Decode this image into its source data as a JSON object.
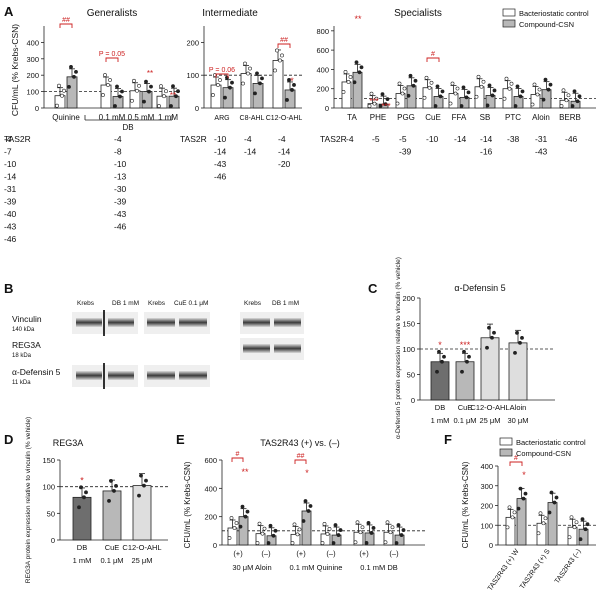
{
  "legend": {
    "open": "Bacteriostatic control",
    "gray": "Compound-CSN"
  },
  "panels": {
    "A": "A",
    "B": "B",
    "C": "C",
    "D": "D",
    "E": "E",
    "F": "F"
  },
  "colors": {
    "red": "#cc1f1f",
    "gray": "#b8b8b8",
    "dark": "#6e6e6e",
    "light": "#dedede"
  },
  "panelA": {
    "titles": {
      "g": "Generalists",
      "i": "Intermediate",
      "s": "Specialists"
    },
    "ylabel": "CFU/mL (% Krebs-CSN)",
    "tas2r_label": "TAS2R",
    "db_label": "DB",
    "g": {
      "ymax": 500,
      "ticks": [
        "0",
        "100",
        "200",
        "300",
        "400"
      ],
      "groups": [
        {
          "label": "Quinine",
          "ctrl": 75,
          "comp": 190
        },
        {
          "label": "0.1 mM",
          "ctrl": 140,
          "comp": 70
        },
        {
          "label": "0.5 mM",
          "ctrl": 105,
          "comp": 100
        },
        {
          "label": "1 mM",
          "ctrl": 72,
          "comp": 72
        }
      ],
      "tas2r": [
        [
          "-4",
          "-7",
          "-10",
          "-14",
          "-31",
          "-39",
          "-40",
          "-43",
          "-46"
        ],
        [
          "-4",
          "-8",
          "-10",
          "-13",
          "-30",
          "-39",
          "-43",
          "-46"
        ]
      ],
      "annot": {
        "quinine": "##",
        "p": "P = 0.05",
        "s1": "**",
        "s2": "**"
      }
    },
    "i": {
      "ymax": 250,
      "ticks": [
        "0",
        "100",
        "200"
      ],
      "groups": [
        {
          "label": "ARG",
          "ctrl": 70,
          "comp": 62
        },
        {
          "label": "C8-AHL",
          "ctrl": 105,
          "comp": 75
        },
        {
          "label": "C12-O-AHL",
          "ctrl": 145,
          "comp": 55
        }
      ],
      "tas2r": [
        [
          "-10",
          "-14",
          "-43",
          "-46"
        ],
        [
          "-4",
          "-14"
        ],
        [
          "-4",
          "-14",
          "-20"
        ]
      ],
      "annot": {
        "p": "P = 0.06",
        "hh": "##",
        "s": "*"
      }
    },
    "s": {
      "ymax": 850,
      "ticks": [
        "0",
        "200",
        "400",
        "600",
        "800"
      ],
      "groups": [
        {
          "label": "TA",
          "ctrl": 270,
          "comp": 370
        },
        {
          "label": "PHE",
          "ctrl": 45,
          "comp": 40
        },
        {
          "label": "PGG",
          "ctrl": 150,
          "comp": 230
        },
        {
          "label": "CuE",
          "ctrl": 210,
          "comp": 120
        },
        {
          "label": "FFA",
          "ctrl": 150,
          "comp": 110
        },
        {
          "label": "SB",
          "ctrl": 220,
          "comp": 130
        },
        {
          "label": "PTC",
          "ctrl": 200,
          "comp": 120
        },
        {
          "label": "Aloin",
          "ctrl": 140,
          "comp": 190
        },
        {
          "label": "BERB",
          "ctrl": 80,
          "comp": 70
        }
      ],
      "tas2r": [
        [
          "-4"
        ],
        [
          "-5"
        ],
        [
          "-5",
          "-39"
        ],
        [
          "-10"
        ],
        [
          "-14"
        ],
        [
          "-14",
          "-16"
        ],
        [
          "-38"
        ],
        [
          "-31",
          "-43"
        ],
        [
          "-46"
        ]
      ],
      "annot": {
        "ta": "**",
        "phe1": "***",
        "phe2": "***",
        "cue": "#"
      }
    }
  },
  "panelB": {
    "left_labels": [
      {
        "name": "Vinculin",
        "sub": "140 kDa"
      },
      {
        "name": "REG3A",
        "sub": "18 kDa"
      },
      {
        "name": "α-Defensin 5",
        "sub": "11 kDa"
      }
    ],
    "blot1": [
      "Krebs",
      "DB 1 mM"
    ],
    "blot2": [
      "Krebs",
      "CuE  0.1 μM"
    ],
    "blot3": [
      "Krebs",
      "DB 1 mM"
    ]
  },
  "chart_data": [
    {
      "type": "bar",
      "title": "α-Defensin 5",
      "ylabel": "α-Defensin 5 protein expression relative to vinculin (% vehicle)",
      "categories": [
        "DB",
        "CuE",
        "C12-O-AHL",
        "Aloin"
      ],
      "concentrations": [
        "1 mM",
        "0.1 μM",
        "25 μM",
        "30 μM"
      ],
      "values": [
        75,
        75,
        122,
        112
      ],
      "ylim": [
        0,
        200
      ],
      "ticks": [
        "0",
        "50",
        "100",
        "150",
        "200"
      ],
      "annotations": [
        "*",
        "***",
        "",
        ""
      ]
    },
    {
      "type": "bar",
      "title": "REG3A",
      "ylabel": "REG3A protein expression relative to vinculin (% vehicle)",
      "categories": [
        "DB",
        "CuE",
        "C12-O-AHL"
      ],
      "concentrations": [
        "1 mM",
        "0.1 μM",
        "25 μM"
      ],
      "values": [
        80,
        92,
        102
      ],
      "ylim": [
        0,
        150
      ],
      "ticks": [
        "0",
        "50",
        "100",
        "150"
      ],
      "annotations": [
        "*",
        "",
        ""
      ]
    },
    {
      "type": "bar",
      "title": "TAS2R43 (+) vs. (–)",
      "ylabel": "CFU/mL (% Krebs-CSN)",
      "ylim": [
        0,
        600
      ],
      "ticks": [
        "0",
        "200",
        "400",
        "600"
      ],
      "categories": [
        "(+)",
        "(–)",
        "(+)",
        "(–)",
        "(+)",
        "(–)"
      ],
      "treatments": [
        "30 μM Aloin",
        "0.1 mM Quinine",
        "0.1 mM DB"
      ],
      "series": [
        {
          "name": "Bacteriostatic control",
          "values": [
            120,
            80,
            75,
            78,
            90,
            90
          ]
        },
        {
          "name": "Compound-CSN",
          "values": [
            200,
            65,
            240,
            70,
            85,
            70
          ]
        }
      ],
      "annotations": {
        "h1": "#",
        "s1": "**",
        "h2": "##",
        "s2": "*"
      }
    },
    {
      "type": "bar",
      "ylabel": "CFU/mL (% Krebs-CSN)",
      "ylim": [
        0,
        400
      ],
      "ticks": [
        "0",
        "100",
        "200",
        "300",
        "400"
      ],
      "categories": [
        "TAS2R43 (+) W",
        "TAS2R43 (+) S",
        "TAS2R43 (–)"
      ],
      "series": [
        {
          "name": "Bacteriostatic control",
          "values": [
            140,
            110,
            90
          ]
        },
        {
          "name": "Compound-CSN",
          "values": [
            235,
            215,
            80
          ]
        }
      ],
      "annotations": {
        "h": "#",
        "s": "*"
      }
    }
  ]
}
